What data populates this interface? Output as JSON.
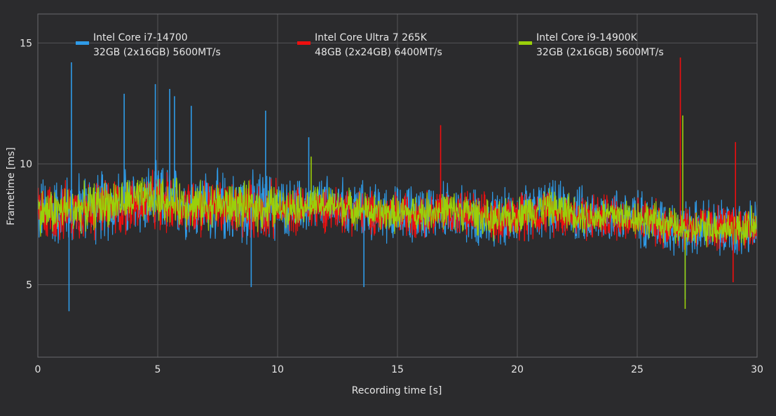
{
  "chart_data": {
    "type": "line",
    "title": "",
    "xlabel": "Recording time [s]",
    "ylabel": "Frametime [ms]",
    "xlim": [
      0,
      30
    ],
    "ylim": [
      2,
      16.2
    ],
    "x_ticks": [
      0,
      5,
      10,
      15,
      20,
      25,
      30
    ],
    "y_ticks": [
      5,
      10,
      15
    ],
    "grid": true,
    "legend_position": "top",
    "series": [
      {
        "name": "Intel Core i7-14700",
        "sublabel": "32GB (2x16GB) 5600MT/s",
        "color": "#2f9be8",
        "x": [
          0,
          1,
          2,
          3,
          4,
          5,
          6,
          7,
          8,
          9,
          10,
          11,
          12,
          13,
          14,
          15,
          16,
          17,
          18,
          19,
          20,
          21,
          22,
          23,
          24,
          25,
          26,
          27,
          28,
          29,
          30
        ],
        "y": [
          8.0,
          8.1,
          8.2,
          8.3,
          8.4,
          8.5,
          8.4,
          8.3,
          8.2,
          8.2,
          8.2,
          8.2,
          8.3,
          8.2,
          8.0,
          7.9,
          8.0,
          8.1,
          7.9,
          7.6,
          7.9,
          8.1,
          8.1,
          7.8,
          7.9,
          7.8,
          7.5,
          7.3,
          7.4,
          7.2,
          7.4
        ],
        "spikes": [
          [
            1.4,
            14.2
          ],
          [
            1.3,
            3.9
          ],
          [
            3.6,
            12.9
          ],
          [
            4.9,
            13.3
          ],
          [
            5.5,
            13.1
          ],
          [
            5.7,
            12.8
          ],
          [
            6.4,
            12.4
          ],
          [
            9.5,
            12.2
          ],
          [
            8.9,
            4.9
          ],
          [
            13.6,
            4.9
          ],
          [
            11.3,
            11.1
          ],
          [
            27.0,
            4.4
          ]
        ]
      },
      {
        "name": "Intel Core Ultra 7 265K",
        "sublabel": "48GB (2x24GB) 6400MT/s",
        "color": "#ee0f0f",
        "x": [
          0,
          1,
          2,
          3,
          4,
          5,
          6,
          7,
          8,
          9,
          10,
          11,
          12,
          13,
          14,
          15,
          16,
          17,
          18,
          19,
          20,
          21,
          22,
          23,
          24,
          25,
          26,
          27,
          28,
          29,
          30
        ],
        "y": [
          8.0,
          8.0,
          8.1,
          8.2,
          8.3,
          8.4,
          8.3,
          8.2,
          8.1,
          8.1,
          8.1,
          8.1,
          8.2,
          8.1,
          7.9,
          7.9,
          8.0,
          8.0,
          7.9,
          7.7,
          7.9,
          8.0,
          8.0,
          7.8,
          7.8,
          7.7,
          7.5,
          7.4,
          7.4,
          7.3,
          7.4
        ],
        "spikes": [
          [
            16.8,
            11.6
          ],
          [
            26.8,
            14.4
          ],
          [
            29.1,
            10.9
          ],
          [
            29.0,
            5.1
          ],
          [
            20.3,
            6.8
          ]
        ]
      },
      {
        "name": "Intel Core i9-14900K",
        "sublabel": "32GB (2x16GB) 5600MT/s",
        "color": "#9ad00a",
        "x": [
          0,
          1,
          2,
          3,
          4,
          5,
          6,
          7,
          8,
          9,
          10,
          11,
          12,
          13,
          14,
          15,
          16,
          17,
          18,
          19,
          20,
          21,
          22,
          23,
          24,
          25,
          26,
          27,
          28,
          29,
          30
        ],
        "y": [
          8.0,
          8.1,
          8.2,
          8.4,
          8.5,
          8.5,
          8.4,
          8.3,
          8.3,
          8.2,
          8.2,
          8.3,
          8.3,
          8.2,
          8.0,
          7.9,
          8.0,
          8.1,
          8.0,
          7.6,
          7.9,
          8.2,
          8.1,
          7.8,
          7.9,
          7.8,
          7.6,
          7.2,
          7.4,
          7.3,
          7.4
        ],
        "spikes": [
          [
            26.9,
            12.0
          ],
          [
            27.0,
            4.0
          ],
          [
            11.4,
            10.3
          ]
        ]
      }
    ]
  }
}
